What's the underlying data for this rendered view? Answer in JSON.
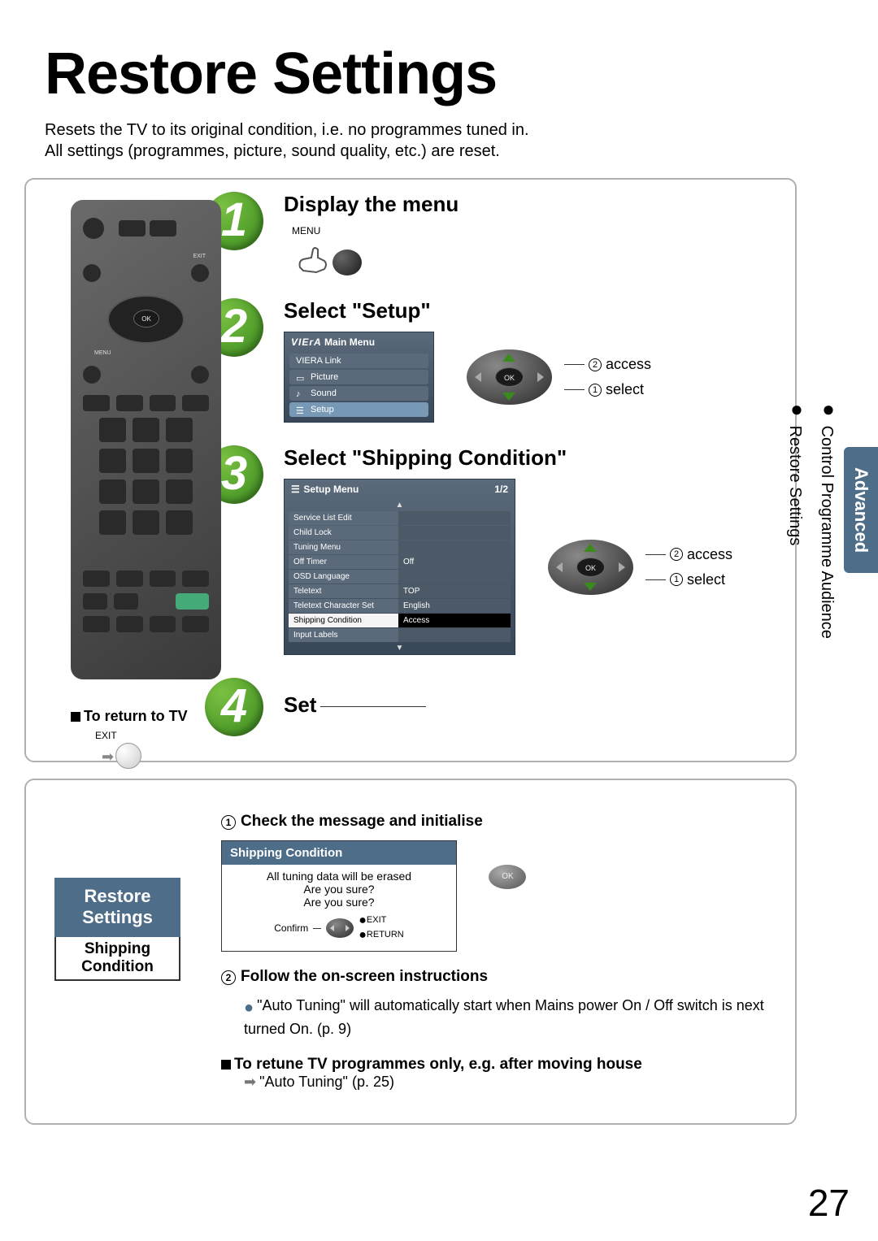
{
  "page": {
    "title": "Restore Settings",
    "intro_line1": "Resets the TV to its original condition, i.e. no programmes tuned in.",
    "intro_line2": "All settings (programmes, picture, sound quality, etc.) are reset.",
    "number": "27"
  },
  "side": {
    "line1": "Restore Settings",
    "line2": "Control Programme Audience",
    "tab": "Advanced"
  },
  "return_tv": {
    "label": "To return to TV",
    "exit": "EXIT"
  },
  "steps": {
    "s1": {
      "num": "1",
      "title": "Display the menu",
      "btn_label": "MENU"
    },
    "s2": {
      "num": "2",
      "title": "Select \"Setup\"",
      "access": "access",
      "select": "select",
      "menu": {
        "brand": "VIErA",
        "header": "Main Menu",
        "items": [
          "VIERA Link",
          "Picture",
          "Sound",
          "Setup"
        ]
      }
    },
    "s3": {
      "num": "3",
      "title": "Select \"Shipping Condition\"",
      "access": "access",
      "select": "select",
      "menu": {
        "header": "Setup Menu",
        "page": "1/2",
        "rows": [
          {
            "label": "Service List Edit",
            "value": ""
          },
          {
            "label": "Child Lock",
            "value": ""
          },
          {
            "label": "Tuning Menu",
            "value": ""
          },
          {
            "label": "Off Timer",
            "value": "Off"
          },
          {
            "label": "OSD Language",
            "value": ""
          },
          {
            "label": "Teletext",
            "value": "TOP"
          },
          {
            "label": "Teletext Character Set",
            "value": "English"
          },
          {
            "label": "Shipping Condition",
            "value": "Access",
            "selected": true
          },
          {
            "label": "Input Labels",
            "value": ""
          }
        ]
      }
    },
    "s4": {
      "num": "4",
      "title": "Set"
    }
  },
  "lower": {
    "badge_title": "Restore Settings",
    "badge_sub": "Shipping Condition",
    "sub1": {
      "title": "Check the message and initialise",
      "box_header": "Shipping Condition",
      "box_line1": "All tuning data will be erased",
      "box_line2": "Are you sure?",
      "box_line3": "Are you sure?",
      "confirm": "Confirm",
      "exit": "EXIT",
      "return": "RETURN",
      "ok": "OK"
    },
    "sub2": {
      "title": "Follow the on-screen instructions",
      "bullet": "\"Auto Tuning\" will automatically start when Mains power On / Off switch is next turned On. (p. 9)"
    },
    "retune": {
      "title": "To retune TV programmes only, e.g. after moving house",
      "sub": "\"Auto Tuning\" (p. 25)"
    }
  },
  "colors": {
    "accent_blue": "#4e6d88",
    "step_green": "#3a8a1e",
    "osd_bg": "#5a6a7a"
  }
}
